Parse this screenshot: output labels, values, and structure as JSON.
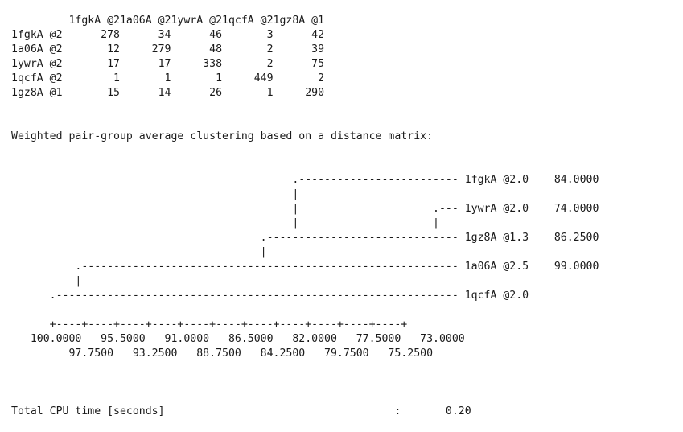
{
  "console": {
    "lines": [
      "         1fgkA @21a06A @21ywrA @21qcfA @21gz8A @1",
      "1fgkA @2      278      34      46       3      42",
      "1a06A @2       12     279      48       2      39",
      "1ywrA @2       17      17     338       2      75",
      "1qcfA @2        1       1       1     449       2",
      "1gz8A @1       15      14      26       1     290",
      "",
      "",
      "Weighted pair-group average clustering based on a distance matrix:",
      "",
      "",
      "                                            .------------------------- 1fgkA @2.0    84.0000",
      "                                            |",
      "                                            |                     .--- 1ywrA @2.0    74.0000",
      "                                            |                     |",
      "                                       .------------------------------ 1gz8A @1.3    86.2500",
      "                                       |",
      "          .----------------------------------------------------------- 1a06A @2.5    99.0000",
      "          |",
      "      .--------------------------------------------------------------- 1qcfA @2.0",
      "",
      "      +----+----+----+----+----+----+----+----+----+----+----+",
      "   100.0000   95.5000   91.0000   86.5000   82.0000   77.5000   73.0000",
      "         97.7500   93.2500   88.7500   84.2500   79.7500   75.2500",
      "",
      "",
      "",
      "Total CPU time [seconds]                                    :       0.20"
    ]
  }
}
